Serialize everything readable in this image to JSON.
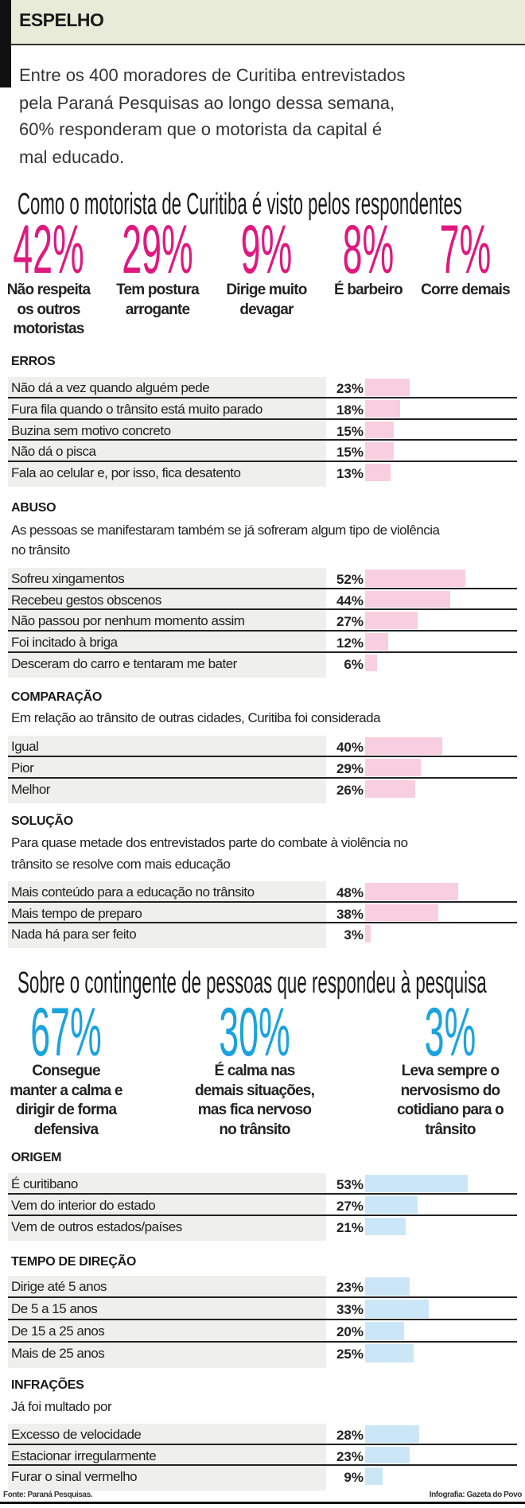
{
  "header": {
    "title": "ESPELHO"
  },
  "intro": [
    "Entre os 400 moradores de Curitiba entrevistados",
    "pela Paraná Pesquisas ao longo dessa semana,",
    "60% responderam que o motorista da capital é",
    "mal educado."
  ],
  "colors": {
    "magenta": "#e0187f",
    "blue": "#1ba3de",
    "pink_bar": "#f8cfe0",
    "blue_bar": "#cbe7f7",
    "row_bg": "#efefeb"
  },
  "view": {
    "title": "Como o motorista de Curitiba é visto pelos respondentes",
    "items": [
      {
        "pct": "42%",
        "label": [
          "Não respeita",
          "os outros",
          "motoristas"
        ]
      },
      {
        "pct": "29%",
        "label": [
          "Tem postura",
          "arrogante"
        ]
      },
      {
        "pct": "9%",
        "label": [
          "Dirige muito",
          "devagar"
        ]
      },
      {
        "pct": "8%",
        "label": [
          "É barbeiro"
        ]
      },
      {
        "pct": "7%",
        "label": [
          "Corre demais"
        ]
      }
    ]
  },
  "sections": {
    "erros": {
      "heading": "ERROS",
      "sub": [],
      "rows": [
        {
          "label": "Não dá a vez quando alguém pede",
          "value": 23,
          "pct": "23%"
        },
        {
          "label": "Fura fila quando o trânsito está muito parado",
          "value": 18,
          "pct": "18%"
        },
        {
          "label": "Buzina sem motivo concreto",
          "value": 15,
          "pct": "15%"
        },
        {
          "label": "Não dá o pisca",
          "value": 15,
          "pct": "15%"
        },
        {
          "label": "Fala ao celular e, por isso, fica desatento",
          "value": 13,
          "pct": "13%"
        }
      ]
    },
    "abuso": {
      "heading": "ABUSO",
      "sub": [
        "As pessoas se manifestaram também se já sofreram algum tipo de violência",
        "no trânsito"
      ],
      "rows": [
        {
          "label": "Sofreu xingamentos",
          "value": 52,
          "pct": "52%"
        },
        {
          "label": "Recebeu gestos obscenos",
          "value": 44,
          "pct": "44%"
        },
        {
          "label": "Não passou por nenhum momento assim",
          "value": 27,
          "pct": "27%"
        },
        {
          "label": "Foi incitado à briga",
          "value": 12,
          "pct": "12%"
        },
        {
          "label": "Desceram do carro e tentaram me bater",
          "value": 6,
          "pct": "6%"
        }
      ]
    },
    "comparacao": {
      "heading": "COMPARAÇÃO",
      "sub": [
        "Em relação ao trânsito de outras cidades, Curitiba foi considerada"
      ],
      "rows": [
        {
          "label": "Igual",
          "value": 40,
          "pct": "40%"
        },
        {
          "label": "Pior",
          "value": 29,
          "pct": "29%"
        },
        {
          "label": "Melhor",
          "value": 26,
          "pct": "26%"
        }
      ]
    },
    "solucao": {
      "heading": "SOLUÇÃO",
      "sub": [
        "Para quase metade dos entrevistados parte do combate à violência no",
        "trânsito se resolve com mais educação"
      ],
      "rows": [
        {
          "label": "Mais conteúdo para a educação no trânsito",
          "value": 48,
          "pct": "48%"
        },
        {
          "label": "Mais tempo de preparo",
          "value": 38,
          "pct": "38%"
        },
        {
          "label": "Nada há para ser feito",
          "value": 3,
          "pct": "3%"
        }
      ]
    },
    "origem": {
      "heading": "ORIGEM",
      "sub": [],
      "rows": [
        {
          "label": "É curitibano",
          "value": 53,
          "pct": "53%"
        },
        {
          "label": "Vem do interior do estado",
          "value": 27,
          "pct": "27%"
        },
        {
          "label": "Vem de outros estados/países",
          "value": 21,
          "pct": "21%"
        }
      ]
    },
    "tempo": {
      "heading": "TEMPO DE DIREÇÃO",
      "sub": [],
      "rows": [
        {
          "label": "Dirige até 5 anos",
          "value": 23,
          "pct": "23%"
        },
        {
          "label": "De 5 a 15 anos",
          "value": 33,
          "pct": "33%"
        },
        {
          "label": "De 15 a 25 anos",
          "value": 20,
          "pct": "20%"
        },
        {
          "label": "Mais de 25 anos",
          "value": 25,
          "pct": "25%"
        }
      ]
    },
    "infracoes": {
      "heading": "INFRAÇÕES",
      "sub": [
        "Já foi multado por"
      ],
      "rows": [
        {
          "label": "Excesso de velocidade",
          "value": 28,
          "pct": "28%"
        },
        {
          "label": "Estacionar irregularmente",
          "value": 23,
          "pct": "23%"
        },
        {
          "label": "Furar o sinal vermelho",
          "value": 9,
          "pct": "9%"
        }
      ]
    }
  },
  "contingent": {
    "title": "Sobre o contingente de pessoas que respondeu à pesquisa",
    "items": [
      {
        "pct": "67%",
        "label": [
          "Consegue",
          "manter a calma e",
          "dirigir de forma",
          "defensiva"
        ]
      },
      {
        "pct": "30%",
        "label": [
          "É calma nas",
          "demais situações,",
          "mas fica nervoso",
          "no trânsito"
        ]
      },
      {
        "pct": "3%",
        "label": [
          "Leva sempre o",
          "nervosismo do",
          "cotidiano para o",
          "trânsito"
        ]
      }
    ]
  },
  "footer": {
    "source": "Fonte: Paraná Pesquisas.",
    "credit": "Infografia: Gazeta do Povo"
  }
}
